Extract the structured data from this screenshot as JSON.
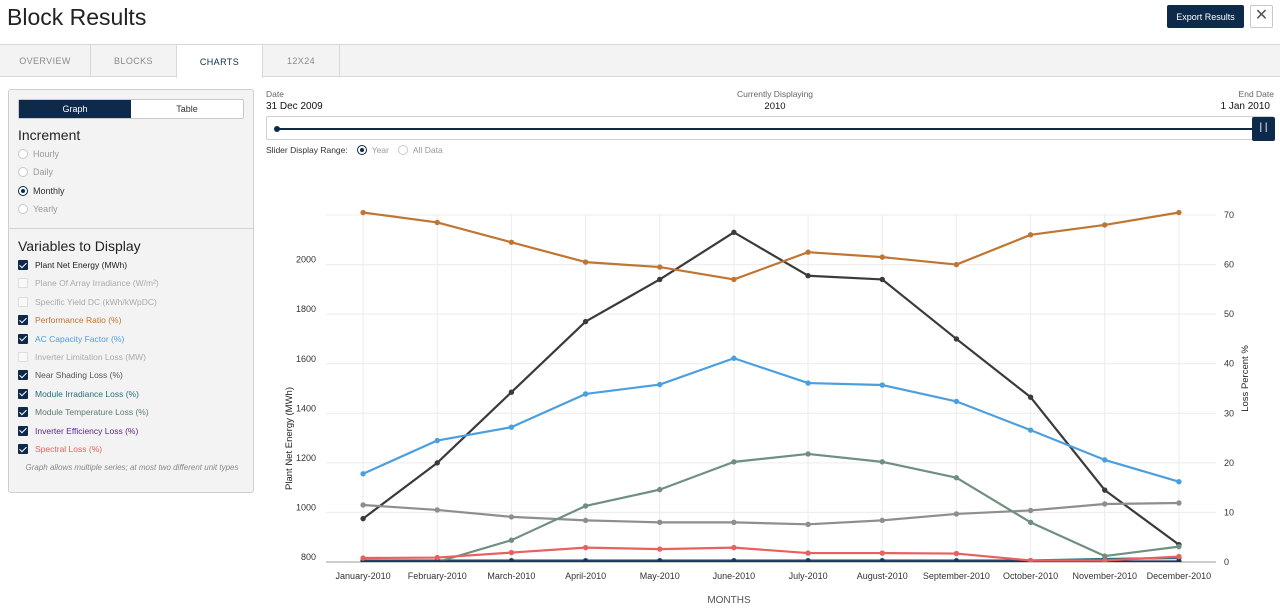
{
  "header": {
    "title": "Block Results",
    "export_label": "Export Results",
    "close_glyph": "✕"
  },
  "tabs": [
    "OVERVIEW",
    "BLOCKS",
    "CHARTS",
    "12X24"
  ],
  "active_tab": "CHARTS",
  "sidebar": {
    "view_toggle": {
      "graph": "Graph",
      "table": "Table",
      "selected": "Graph"
    },
    "increment": {
      "title": "Increment",
      "options": [
        "Hourly",
        "Daily",
        "Monthly",
        "Yearly"
      ],
      "selected": "Monthly"
    },
    "variables": {
      "title": "Variables to Display",
      "items": [
        {
          "label": "Plant Net Energy (MWh)",
          "checked": true,
          "color": "#222222"
        },
        {
          "label": "Plane Of Array Irradiance (W/m²)",
          "checked": false,
          "color": "#aaaaaa"
        },
        {
          "label": "Specific Yield DC (kWh/kWpDC)",
          "checked": false,
          "color": "#aaaaaa"
        },
        {
          "label": "Performance Ratio (%)",
          "checked": true,
          "color": "#c07533"
        },
        {
          "label": "AC Capacity Factor (%)",
          "checked": true,
          "color": "#4a9fe0"
        },
        {
          "label": "Inverter Limitation Loss (MW)",
          "checked": false,
          "color": "#aaaaaa"
        },
        {
          "label": "Near Shading Loss (%)",
          "checked": true,
          "color": "#555555"
        },
        {
          "label": "Module Irradiance Loss (%)",
          "checked": true,
          "color": "#2a6f7a"
        },
        {
          "label": "Module Temperature Loss (%)",
          "checked": true,
          "color": "#5e7d6e"
        },
        {
          "label": "Inverter Efficiency Loss (%)",
          "checked": true,
          "color": "#5b2a86"
        },
        {
          "label": "Spectral Loss (%)",
          "checked": true,
          "color": "#e8615f"
        }
      ],
      "note": "Graph allows multiple series; at most two different unit types"
    }
  },
  "slider": {
    "date_label": "Date",
    "date_value": "31 Dec 2009",
    "current_label": "Currently Displaying",
    "current_value": "2010",
    "end_label": "End Date",
    "end_value": "1 Jan 2010",
    "handle_glyph": "| |",
    "range_label": "Slider Display Range:",
    "range_options": [
      "Year",
      "All Data"
    ],
    "range_selected": "Year"
  },
  "chart_data": {
    "type": "line",
    "xlabel": "MONTHS",
    "ylabel": "Plant Net Energy (MWh)",
    "ylabel_right": "Loss Percent %",
    "categories": [
      "January-2010",
      "February-2010",
      "March-2010",
      "April-2010",
      "May-2010",
      "June-2010",
      "July-2010",
      "August-2010",
      "September-2010",
      "October-2010",
      "November-2010",
      "December-2010"
    ],
    "ylim": [
      780,
      2180
    ],
    "yticks": [
      800,
      1000,
      1200,
      1400,
      1600,
      1800,
      2000
    ],
    "ylim_right": [
      0,
      70
    ],
    "yticks_right": [
      0,
      10,
      20,
      30,
      40,
      50,
      60,
      70
    ],
    "series": [
      {
        "name": "Plant Net Energy (MWh)",
        "axis": "left",
        "color": "#3a3a3a",
        "values": [
          955,
          1180,
          1465,
          1750,
          1920,
          2110,
          1935,
          1920,
          1680,
          1445,
          1070,
          850
        ]
      },
      {
        "name": "Performance Ratio (%)",
        "axis": "right",
        "color": "#c07533",
        "values": [
          70.5,
          68.5,
          64.5,
          60.5,
          59.5,
          57,
          62.5,
          61.5,
          60,
          66,
          68,
          70.5
        ]
      },
      {
        "name": "AC Capacity Factor (%)",
        "axis": "right",
        "color": "#4a9fe0",
        "values": [
          17.8,
          24.5,
          27.2,
          33.9,
          35.8,
          41.1,
          36.1,
          35.7,
          32.4,
          26.6,
          20.6,
          16.2
        ]
      },
      {
        "name": "Near Shading Loss (%)",
        "axis": "right",
        "color": "#8e8e8e",
        "values": [
          11.5,
          10.5,
          9.1,
          8.4,
          8,
          8,
          7.6,
          8.4,
          9.7,
          10.4,
          11.7,
          11.9
        ]
      },
      {
        "name": "Module Irradiance Loss (%)",
        "axis": "right",
        "color": "#2a6f7a",
        "values": [
          0.3,
          0.3,
          0.3,
          0.3,
          0.3,
          0.3,
          0.3,
          0.3,
          0.3,
          0.3,
          0.6,
          0.8
        ]
      },
      {
        "name": "Module Temperature Loss (%)",
        "axis": "right",
        "color": "#6f8f80",
        "values": [
          -0.8,
          0,
          4.4,
          11.3,
          14.6,
          20.2,
          21.8,
          20.2,
          17,
          8,
          1.2,
          3.1
        ]
      },
      {
        "name": "Inverter Efficiency Loss (%)",
        "axis": "right",
        "color": "#1c2f66",
        "values": [
          0.1,
          0.1,
          0.1,
          0.1,
          0.1,
          0.1,
          0.1,
          0.1,
          0.1,
          0.1,
          0.1,
          0.1
        ]
      },
      {
        "name": "Spectral Loss (%)",
        "axis": "right",
        "color": "#e8615f",
        "values": [
          0.8,
          0.9,
          1.9,
          2.9,
          2.6,
          2.9,
          1.8,
          1.8,
          1.7,
          0.3,
          0.3,
          1.1
        ]
      }
    ]
  }
}
